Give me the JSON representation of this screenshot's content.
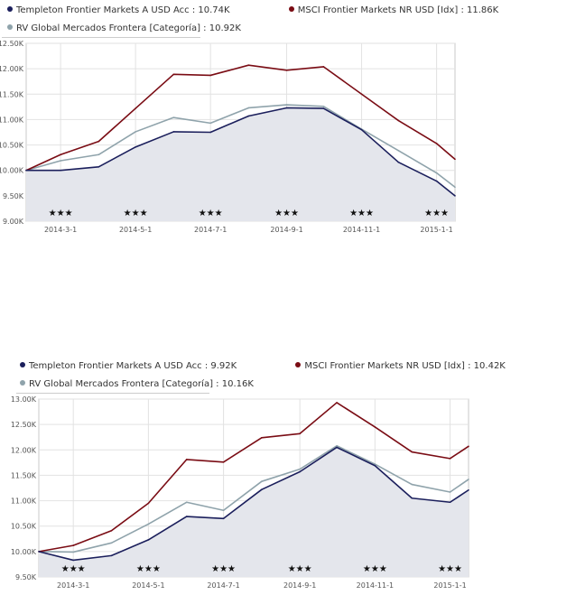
{
  "chart_data": [
    {
      "type": "area",
      "legend_placement": "top-left",
      "grid": true,
      "ylim": [
        9.0,
        12.5
      ],
      "y_ticks": [
        "9.00K",
        "9.50K",
        "10.00K",
        "10.50K",
        "11.00K",
        "11.50K",
        "12.00K",
        "12.50K"
      ],
      "x_ticks": [
        "2014-3-1",
        "2014-5-1",
        "2014-7-1",
        "2014-9-1",
        "2014-11-1",
        "2015-1-1"
      ],
      "x": [
        "2014-02-01",
        "2014-03-01",
        "2014-04-01",
        "2014-05-01",
        "2014-06-01",
        "2014-07-01",
        "2014-08-01",
        "2014-09-01",
        "2014-10-01",
        "2014-11-01",
        "2014-12-01",
        "2015-01-01",
        "2015-01-16"
      ],
      "rating": "★★★",
      "series": [
        {
          "name": "Templeton Frontier Markets A USD Acc",
          "legend_value": "10.74K",
          "color": "#1b1f5c",
          "filled": true,
          "values": [
            10.0,
            10.0,
            10.07,
            10.46,
            10.76,
            10.75,
            11.07,
            11.23,
            11.22,
            10.8,
            10.16,
            9.79,
            9.5
          ]
        },
        {
          "name": "MSCI Frontier Markets NR USD [Idx]",
          "legend_value": "11.86K",
          "color": "#7a0c14",
          "filled": false,
          "values": [
            10.0,
            10.31,
            10.57,
            11.22,
            11.89,
            11.87,
            12.07,
            11.97,
            12.04,
            11.5,
            10.98,
            10.53,
            10.22
          ]
        },
        {
          "name": "RV Global Mercados Frontera [Categoría]",
          "legend_value": "10.92K",
          "color": "#8fa3ab",
          "filled": false,
          "values": [
            10.0,
            10.19,
            10.31,
            10.76,
            11.04,
            10.93,
            11.23,
            11.29,
            11.26,
            10.81,
            10.39,
            9.95,
            9.67
          ]
        }
      ]
    },
    {
      "type": "area",
      "legend_placement": "top-left",
      "grid": true,
      "ylim": [
        9.5,
        13.0
      ],
      "y_ticks": [
        "9.50K",
        "10.00K",
        "10.50K",
        "11.00K",
        "11.50K",
        "12.00K",
        "12.50K",
        "13.00K"
      ],
      "x_ticks": [
        "2014-3-1",
        "2014-5-1",
        "2014-7-1",
        "2014-9-1",
        "2014-11-1",
        "2015-1-1"
      ],
      "x": [
        "2014-02-01",
        "2014-03-01",
        "2014-04-01",
        "2014-05-01",
        "2014-06-01",
        "2014-07-01",
        "2014-08-01",
        "2014-09-01",
        "2014-10-01",
        "2014-11-01",
        "2014-12-01",
        "2015-01-01",
        "2015-01-16"
      ],
      "rating": "★★★",
      "series": [
        {
          "name": "Templeton Frontier Markets A USD Acc",
          "legend_value": "9.92K",
          "color": "#1b1f5c",
          "filled": true,
          "values": [
            10.0,
            9.83,
            9.92,
            10.23,
            10.69,
            10.65,
            11.22,
            11.57,
            12.05,
            11.69,
            11.05,
            10.97,
            11.21
          ]
        },
        {
          "name": "MSCI Frontier Markets NR USD [Idx]",
          "legend_value": "10.42K",
          "color": "#7a0c14",
          "filled": false,
          "values": [
            10.0,
            10.12,
            10.41,
            10.95,
            11.81,
            11.76,
            12.24,
            12.32,
            12.93,
            12.45,
            11.96,
            11.83,
            12.07
          ]
        },
        {
          "name": "RV Global Mercados Frontera [Categoría]",
          "legend_value": "10.16K",
          "color": "#8fa3ab",
          "filled": false,
          "values": [
            10.0,
            9.99,
            10.17,
            10.54,
            10.97,
            10.81,
            11.38,
            11.62,
            12.08,
            11.72,
            11.32,
            11.17,
            11.42
          ]
        }
      ]
    }
  ]
}
